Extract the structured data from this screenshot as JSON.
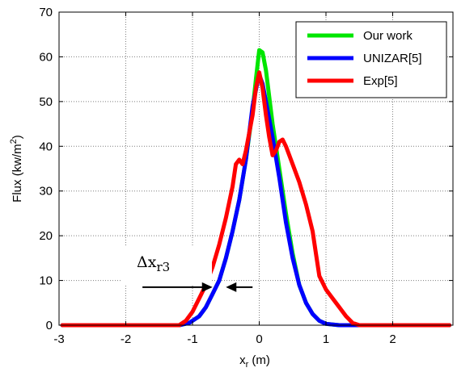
{
  "chart_data": {
    "type": "line",
    "xlabel": "x",
    "xlabel_sub": "r",
    "xlabel_unit": " (m)",
    "ylabel": "Flux (kw/m",
    "ylabel_sup": "2",
    "ylabel_end": ")",
    "xlim": [
      -3,
      2.9
    ],
    "ylim": [
      0,
      70
    ],
    "xticks": [
      -3,
      -2,
      -1,
      0,
      1,
      2,
      3
    ],
    "yticks": [
      0,
      10,
      20,
      30,
      40,
      50,
      60,
      70
    ],
    "grid": true,
    "legend_position": "top-right",
    "annotation": {
      "text": "Δx",
      "sub": "r3",
      "arrow_y": 8.5,
      "arrow_x_left": -1.75,
      "arrow_x_right": -0.1,
      "gap": [
        -0.7,
        -0.5
      ]
    },
    "series": [
      {
        "name": "Our work",
        "color": "#00e600",
        "points": [
          [
            -2.95,
            0
          ],
          [
            -1.2,
            0
          ],
          [
            -1.05,
            0.5
          ],
          [
            -0.9,
            2
          ],
          [
            -0.8,
            4
          ],
          [
            -0.7,
            7
          ],
          [
            -0.6,
            10
          ],
          [
            -0.5,
            15
          ],
          [
            -0.4,
            21
          ],
          [
            -0.3,
            28
          ],
          [
            -0.2,
            37
          ],
          [
            -0.1,
            48
          ],
          [
            -0.05,
            55
          ],
          [
            0,
            61.5
          ],
          [
            0.05,
            61
          ],
          [
            0.1,
            57
          ],
          [
            0.15,
            51
          ],
          [
            0.2,
            45
          ],
          [
            0.3,
            35
          ],
          [
            0.4,
            25
          ],
          [
            0.5,
            16
          ],
          [
            0.6,
            9
          ],
          [
            0.7,
            5
          ],
          [
            0.8,
            2.5
          ],
          [
            0.9,
            1
          ],
          [
            1.0,
            0.3
          ],
          [
            1.2,
            0
          ],
          [
            2.85,
            0
          ]
        ]
      },
      {
        "name": "UNIZAR[5]",
        "color": "#0000ff",
        "points": [
          [
            -2.95,
            0
          ],
          [
            -1.2,
            0
          ],
          [
            -1.05,
            0.5
          ],
          [
            -0.9,
            2
          ],
          [
            -0.8,
            4
          ],
          [
            -0.7,
            7
          ],
          [
            -0.6,
            10
          ],
          [
            -0.5,
            15
          ],
          [
            -0.4,
            21
          ],
          [
            -0.3,
            28
          ],
          [
            -0.2,
            37
          ],
          [
            -0.1,
            49
          ],
          [
            -0.03,
            54
          ],
          [
            0,
            56
          ],
          [
            0.05,
            54
          ],
          [
            0.1,
            50
          ],
          [
            0.2,
            42
          ],
          [
            0.3,
            33
          ],
          [
            0.4,
            23
          ],
          [
            0.5,
            15
          ],
          [
            0.6,
            9
          ],
          [
            0.7,
            5
          ],
          [
            0.8,
            2.5
          ],
          [
            0.9,
            1
          ],
          [
            1.0,
            0.3
          ],
          [
            1.2,
            0
          ],
          [
            2.85,
            0
          ]
        ]
      },
      {
        "name": "Exp[5]",
        "color": "#ff0000",
        "points": [
          [
            -2.95,
            0
          ],
          [
            -1.2,
            0
          ],
          [
            -1.1,
            1
          ],
          [
            -1.0,
            3
          ],
          [
            -0.9,
            6
          ],
          [
            -0.8,
            9
          ],
          [
            -0.7,
            13
          ],
          [
            -0.6,
            18
          ],
          [
            -0.5,
            24
          ],
          [
            -0.4,
            31
          ],
          [
            -0.35,
            36
          ],
          [
            -0.3,
            37
          ],
          [
            -0.25,
            36
          ],
          [
            -0.2,
            39
          ],
          [
            -0.1,
            47
          ],
          [
            -0.05,
            53
          ],
          [
            0,
            56.5
          ],
          [
            0.05,
            53
          ],
          [
            0.1,
            47
          ],
          [
            0.15,
            42
          ],
          [
            0.2,
            38
          ],
          [
            0.25,
            39
          ],
          [
            0.3,
            41
          ],
          [
            0.35,
            41.5
          ],
          [
            0.4,
            40
          ],
          [
            0.5,
            36
          ],
          [
            0.6,
            32
          ],
          [
            0.7,
            27
          ],
          [
            0.8,
            21
          ],
          [
            0.85,
            16
          ],
          [
            0.9,
            11
          ],
          [
            1.0,
            8
          ],
          [
            1.1,
            6
          ],
          [
            1.2,
            4
          ],
          [
            1.3,
            2
          ],
          [
            1.4,
            0.5
          ],
          [
            1.5,
            0
          ],
          [
            2.85,
            0
          ]
        ]
      }
    ]
  }
}
